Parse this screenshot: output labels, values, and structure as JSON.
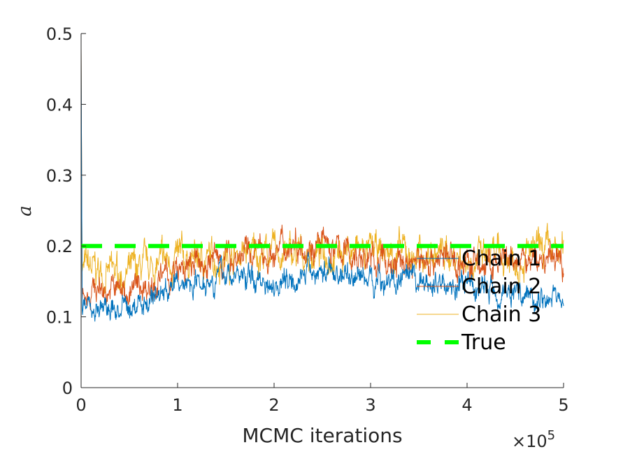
{
  "chart_data": {
    "type": "line",
    "title": "",
    "xlabel": "MCMC iterations",
    "ylabel": "a",
    "xlim": [
      0,
      500000
    ],
    "ylim": [
      0,
      0.5
    ],
    "x_tick_labels": [
      "0",
      "1",
      "2",
      "3",
      "4",
      "5"
    ],
    "x_ticks": [
      0,
      100000,
      200000,
      300000,
      400000,
      500000
    ],
    "x_exponent_prefix": "×10",
    "x_exponent_power": "5",
    "y_tick_labels": [
      "0",
      "0.1",
      "0.2",
      "0.3",
      "0.4",
      "0.5"
    ],
    "y_ticks": [
      0,
      0.1,
      0.2,
      0.3,
      0.4,
      0.5
    ],
    "grid": false,
    "legend_position": "right",
    "series": [
      {
        "name": "Chain 1",
        "color": "#0072BD",
        "x": [
          0,
          25000,
          50000,
          75000,
          100000,
          125000,
          150000,
          175000,
          200000,
          225000,
          250000,
          275000,
          300000,
          325000,
          350000,
          375000,
          400000,
          425000,
          450000,
          475000,
          500000
        ],
        "values": [
          0.12,
          0.11,
          0.11,
          0.13,
          0.145,
          0.155,
          0.16,
          0.155,
          0.15,
          0.16,
          0.165,
          0.16,
          0.155,
          0.15,
          0.145,
          0.15,
          0.14,
          0.14,
          0.135,
          0.13,
          0.125
        ]
      },
      {
        "name": "Chain 2",
        "color": "#D95319",
        "x": [
          0,
          25000,
          50000,
          75000,
          100000,
          125000,
          150000,
          175000,
          200000,
          225000,
          250000,
          275000,
          300000,
          325000,
          350000,
          375000,
          400000,
          425000,
          450000,
          475000,
          500000
        ],
        "values": [
          0.14,
          0.14,
          0.135,
          0.15,
          0.16,
          0.175,
          0.185,
          0.19,
          0.19,
          0.21,
          0.2,
          0.19,
          0.18,
          0.175,
          0.18,
          0.185,
          0.175,
          0.17,
          0.175,
          0.18,
          0.18
        ]
      },
      {
        "name": "Chain 3",
        "color": "#EDB120",
        "x": [
          0,
          25000,
          50000,
          75000,
          100000,
          125000,
          150000,
          175000,
          200000,
          225000,
          250000,
          275000,
          300000,
          325000,
          350000,
          375000,
          400000,
          425000,
          450000,
          475000,
          500000
        ],
        "values": [
          0.17,
          0.16,
          0.16,
          0.17,
          0.18,
          0.18,
          0.185,
          0.19,
          0.19,
          0.185,
          0.19,
          0.195,
          0.19,
          0.19,
          0.185,
          0.19,
          0.185,
          0.18,
          0.185,
          0.19,
          0.19
        ]
      },
      {
        "name": "True",
        "color": "#00FF00",
        "style": "dashed",
        "x": [
          0,
          500000
        ],
        "values": [
          0.2,
          0.2
        ]
      }
    ]
  }
}
